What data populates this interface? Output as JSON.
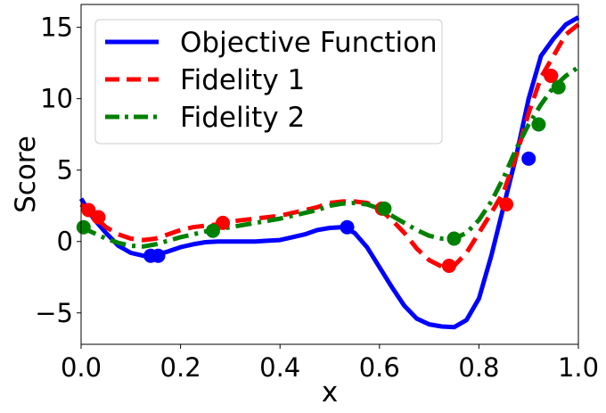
{
  "chart_data": {
    "type": "line",
    "xlabel": "x",
    "ylabel": "Score",
    "xlim": [
      0.0,
      1.0
    ],
    "ylim": [
      -7.2,
      16.6
    ],
    "x_ticks": [
      0.0,
      0.2,
      0.4,
      0.6,
      0.8,
      1.0
    ],
    "x_tick_labels": [
      "0.0",
      "0.2",
      "0.4",
      "0.6",
      "0.8",
      "1.0"
    ],
    "y_ticks": [
      -5,
      0,
      5,
      10,
      15
    ],
    "y_tick_labels": [
      "−5",
      "0",
      "5",
      "10",
      "15"
    ],
    "grid": false,
    "legend_position": "top-left",
    "series": [
      {
        "name": "Objective Function",
        "color": "#0000ff",
        "style": "solid",
        "x": [
          0.0,
          0.025,
          0.05,
          0.075,
          0.1,
          0.125,
          0.15,
          0.175,
          0.2,
          0.225,
          0.25,
          0.275,
          0.3,
          0.325,
          0.35,
          0.375,
          0.4,
          0.425,
          0.45,
          0.475,
          0.5,
          0.525,
          0.55,
          0.575,
          0.6,
          0.625,
          0.65,
          0.675,
          0.7,
          0.725,
          0.75,
          0.775,
          0.8,
          0.825,
          0.85,
          0.875,
          0.9,
          0.925,
          0.95,
          0.975,
          1.0
        ],
        "y": [
          3.0,
          1.6,
          0.6,
          -0.3,
          -0.8,
          -1.0,
          -0.95,
          -0.7,
          -0.4,
          -0.2,
          -0.05,
          0.0,
          0.0,
          0.0,
          0.0,
          0.05,
          0.1,
          0.3,
          0.5,
          0.8,
          0.95,
          1.0,
          0.6,
          -0.4,
          -1.8,
          -3.2,
          -4.5,
          -5.4,
          -5.8,
          -5.95,
          -6.0,
          -5.5,
          -4.0,
          -1.0,
          2.5,
          6.0,
          10.0,
          13.0,
          14.2,
          15.2,
          15.7
        ],
        "observations": {
          "x": [
            0.14,
            0.155,
            0.535,
            0.9,
            0.945
          ],
          "y": [
            -1.0,
            -1.0,
            1.0,
            5.8,
            11.6
          ]
        }
      },
      {
        "name": "Fidelity 1",
        "color": "#ff0000",
        "style": "dashed",
        "x": [
          0.0,
          0.025,
          0.05,
          0.075,
          0.1,
          0.125,
          0.15,
          0.175,
          0.2,
          0.225,
          0.25,
          0.275,
          0.3,
          0.325,
          0.35,
          0.375,
          0.4,
          0.425,
          0.45,
          0.475,
          0.5,
          0.525,
          0.55,
          0.575,
          0.6,
          0.625,
          0.65,
          0.675,
          0.7,
          0.725,
          0.75,
          0.775,
          0.8,
          0.825,
          0.85,
          0.875,
          0.9,
          0.925,
          0.95,
          0.975,
          1.0
        ],
        "y": [
          2.6,
          1.8,
          1.0,
          0.5,
          0.2,
          0.1,
          0.2,
          0.5,
          0.8,
          1.0,
          1.1,
          1.2,
          1.4,
          1.5,
          1.6,
          1.7,
          1.8,
          2.0,
          2.2,
          2.4,
          2.7,
          2.8,
          2.8,
          2.7,
          2.3,
          1.5,
          0.6,
          -0.5,
          -1.3,
          -1.75,
          -1.7,
          -0.8,
          0.6,
          2.0,
          3.5,
          6.0,
          9.0,
          11.5,
          13.0,
          14.5,
          15.2
        ],
        "observations": {
          "x": [
            0.015,
            0.035,
            0.285,
            0.605,
            0.74,
            0.855,
            0.945
          ],
          "y": [
            2.2,
            1.7,
            1.3,
            2.3,
            -1.7,
            2.6,
            11.6
          ]
        }
      },
      {
        "name": "Fidelity 2",
        "color": "#008000",
        "style": "dashdot",
        "x": [
          0.0,
          0.025,
          0.05,
          0.075,
          0.1,
          0.125,
          0.15,
          0.175,
          0.2,
          0.225,
          0.25,
          0.275,
          0.3,
          0.325,
          0.35,
          0.375,
          0.4,
          0.425,
          0.45,
          0.475,
          0.5,
          0.525,
          0.55,
          0.575,
          0.6,
          0.625,
          0.65,
          0.675,
          0.7,
          0.725,
          0.75,
          0.775,
          0.8,
          0.825,
          0.85,
          0.875,
          0.9,
          0.925,
          0.95,
          0.975,
          1.0
        ],
        "y": [
          1.0,
          0.6,
          0.2,
          -0.1,
          -0.3,
          -0.35,
          -0.2,
          0.05,
          0.3,
          0.5,
          0.7,
          0.85,
          1.0,
          1.15,
          1.3,
          1.45,
          1.6,
          1.8,
          2.0,
          2.2,
          2.5,
          2.65,
          2.7,
          2.6,
          2.3,
          1.8,
          1.3,
          0.8,
          0.4,
          0.2,
          0.2,
          0.6,
          1.5,
          2.8,
          4.5,
          6.5,
          8.2,
          9.6,
          10.8,
          11.6,
          12.2
        ],
        "observations": {
          "x": [
            0.005,
            0.265,
            0.61,
            0.75,
            0.92,
            0.96
          ],
          "y": [
            1.0,
            0.75,
            2.3,
            0.2,
            8.2,
            10.8
          ]
        }
      }
    ]
  }
}
